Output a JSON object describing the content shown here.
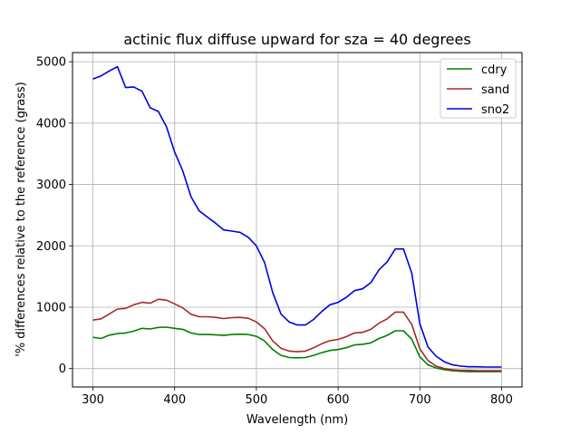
{
  "chart_data": {
    "type": "line",
    "title": "actinic flux diffuse upward for sza = 40 degrees",
    "xlabel": "Wavelength (nm)",
    "ylabel": "'% differences relative to the reference (grass)",
    "xlim": [
      275,
      825
    ],
    "ylim": [
      -300,
      5150
    ],
    "xticks": [
      300,
      400,
      500,
      600,
      700,
      800
    ],
    "yticks": [
      0,
      1000,
      2000,
      3000,
      4000,
      5000
    ],
    "grid": true,
    "legend_position": "top-right",
    "x": [
      300,
      310,
      320,
      330,
      340,
      350,
      360,
      370,
      380,
      390,
      400,
      410,
      420,
      430,
      440,
      450,
      460,
      470,
      480,
      490,
      500,
      510,
      520,
      530,
      540,
      550,
      560,
      570,
      580,
      590,
      600,
      610,
      620,
      630,
      640,
      650,
      660,
      670,
      680,
      690,
      700,
      710,
      720,
      730,
      740,
      750,
      760,
      770,
      780,
      790,
      800
    ],
    "series": [
      {
        "name": "cdry",
        "color": "#008000",
        "values": [
          510,
          490,
          545,
          570,
          580,
          610,
          655,
          645,
          670,
          675,
          655,
          640,
          580,
          555,
          555,
          550,
          540,
          555,
          560,
          555,
          525,
          450,
          310,
          215,
          180,
          175,
          180,
          215,
          260,
          295,
          310,
          340,
          385,
          395,
          420,
          490,
          540,
          615,
          615,
          480,
          190,
          60,
          10,
          -20,
          -35,
          -45,
          -50,
          -50,
          -50,
          -50,
          -50
        ]
      },
      {
        "name": "sand",
        "color": "#a52a2a",
        "values": [
          790,
          810,
          890,
          970,
          980,
          1040,
          1080,
          1065,
          1130,
          1115,
          1055,
          990,
          885,
          845,
          845,
          835,
          815,
          830,
          835,
          820,
          760,
          650,
          450,
          330,
          285,
          275,
          285,
          340,
          405,
          455,
          475,
          520,
          580,
          590,
          640,
          740,
          810,
          920,
          920,
          720,
          320,
          130,
          40,
          0,
          -20,
          -30,
          -30,
          -35,
          -35,
          -35,
          -35
        ]
      },
      {
        "name": "sno2",
        "color": "#0000e0",
        "values": [
          4720,
          4770,
          4850,
          4920,
          4580,
          4590,
          4520,
          4250,
          4190,
          3940,
          3530,
          3220,
          2800,
          2570,
          2470,
          2370,
          2260,
          2240,
          2220,
          2140,
          2000,
          1730,
          1240,
          890,
          760,
          710,
          710,
          800,
          930,
          1040,
          1080,
          1160,
          1270,
          1300,
          1400,
          1610,
          1740,
          1950,
          1950,
          1560,
          730,
          350,
          200,
          110,
          60,
          40,
          30,
          30,
          25,
          25,
          25
        ]
      }
    ]
  }
}
